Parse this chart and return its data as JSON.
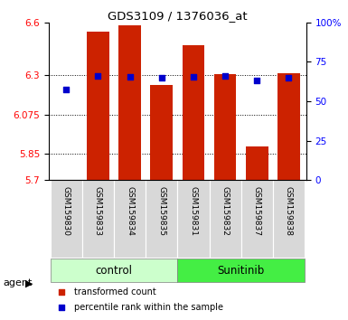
{
  "title": "GDS3109 / 1376036_at",
  "samples": [
    "GSM159830",
    "GSM159833",
    "GSM159834",
    "GSM159835",
    "GSM159831",
    "GSM159832",
    "GSM159837",
    "GSM159838"
  ],
  "groups": [
    "control",
    "control",
    "control",
    "control",
    "Sunitinib",
    "Sunitinib",
    "Sunitinib",
    "Sunitinib"
  ],
  "bar_values": [
    5.702,
    6.545,
    6.585,
    6.245,
    6.47,
    6.305,
    5.895,
    6.31
  ],
  "blue_values": [
    6.22,
    6.295,
    6.29,
    6.285,
    6.29,
    6.295,
    6.27,
    6.285
  ],
  "bar_bottom": 5.7,
  "ylim_left": [
    5.7,
    6.6
  ],
  "ylim_right": [
    0,
    100
  ],
  "yticks_left": [
    5.7,
    5.85,
    6.075,
    6.3,
    6.6
  ],
  "ytick_labels_left": [
    "5.7",
    "5.85",
    "6.075",
    "6.3",
    "6.6"
  ],
  "yticks_right": [
    0,
    25,
    50,
    75,
    100
  ],
  "ytick_labels_right": [
    "0",
    "25",
    "50",
    "75",
    "100%"
  ],
  "bar_color": "#cc2200",
  "blue_color": "#0000cc",
  "control_color": "#ccffcc",
  "sunitinib_color": "#44ee44",
  "group_label_control": "control",
  "group_label_sunitinib": "Sunitinib",
  "agent_label": "agent",
  "legend1": "transformed count",
  "legend2": "percentile rank within the sample",
  "plot_bg": "#ffffff",
  "tick_bg": "#d8d8d8",
  "bar_width": 0.7
}
